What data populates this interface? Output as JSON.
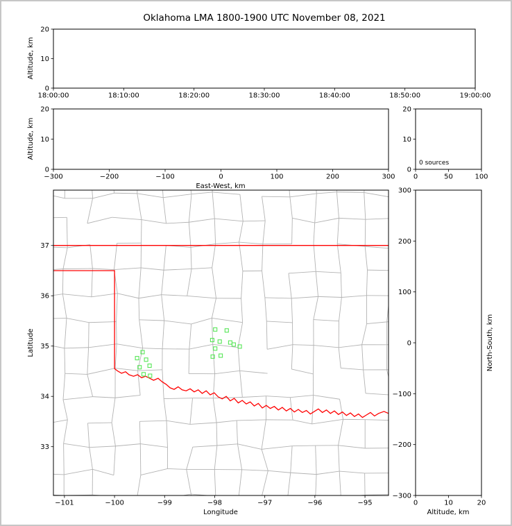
{
  "title": "Oklahoma LMA 1800-1900 UTC November 08, 2021",
  "colors": {
    "state_border": "#ff0000",
    "county_line": "#b3b3b3",
    "station": "#57e657",
    "axis": "#000000",
    "page_frame": "#c6c6c6"
  },
  "chart_data": [
    {
      "id": "time_height",
      "type": "scatter",
      "xlabel": "",
      "ylabel": "Altitude, km",
      "x_tick_labels": [
        "18:00:00",
        "18:10:00",
        "18:20:00",
        "18:30:00",
        "18:40:00",
        "18:50:00",
        "19:00:00"
      ],
      "ylim": [
        0,
        20
      ],
      "yticks": [
        0,
        10,
        20
      ],
      "points": []
    },
    {
      "id": "ew_height",
      "type": "scatter",
      "xlabel": "East-West, km",
      "ylabel": "Altitude, km",
      "xlim": [
        -300,
        300
      ],
      "xticks": [
        -300,
        -200,
        -100,
        0,
        100,
        200,
        300
      ],
      "ylim": [
        0,
        20
      ],
      "yticks": [
        0,
        10,
        20
      ],
      "points": []
    },
    {
      "id": "source_histogram",
      "type": "line",
      "annotation": "0 sources",
      "xlim": [
        0,
        100
      ],
      "xticks": [
        0,
        50,
        100
      ],
      "ylim": [
        0,
        20
      ],
      "yticks": [
        0,
        10,
        20
      ],
      "points": []
    },
    {
      "id": "plan_view",
      "type": "scatter",
      "xlabel": "Longitude",
      "ylabel": "Latitude",
      "xlim": [
        -101.22,
        -94.53
      ],
      "ylim": [
        32.03,
        38.1
      ],
      "xticks": [
        -101,
        -100,
        -99,
        -98,
        -97,
        -96,
        -95
      ],
      "yticks": [
        33,
        34,
        35,
        36,
        37
      ],
      "points": [],
      "stations_lon_lat": [
        [
          -99.44,
          34.88
        ],
        [
          -99.55,
          34.76
        ],
        [
          -99.37,
          34.73
        ],
        [
          -99.3,
          34.61
        ],
        [
          -99.5,
          34.58
        ],
        [
          -99.42,
          34.44
        ],
        [
          -99.29,
          34.41
        ],
        [
          -97.99,
          35.33
        ],
        [
          -97.76,
          35.31
        ],
        [
          -98.05,
          35.12
        ],
        [
          -97.9,
          35.09
        ],
        [
          -97.69,
          35.07
        ],
        [
          -97.62,
          35.03
        ],
        [
          -97.5,
          34.99
        ],
        [
          -97.99,
          34.95
        ],
        [
          -97.88,
          34.81
        ],
        [
          -98.04,
          34.79
        ]
      ],
      "state_border_lon_lat": [
        [
          [
            -101.22,
            37.0
          ],
          [
            -94.53,
            37.0
          ]
        ],
        [
          [
            -101.22,
            36.5
          ],
          [
            -100.0,
            36.5
          ],
          [
            -100.0,
            34.55
          ],
          [
            -99.93,
            34.5
          ],
          [
            -99.86,
            34.46
          ],
          [
            -99.78,
            34.49
          ],
          [
            -99.71,
            34.43
          ],
          [
            -99.62,
            34.4
          ],
          [
            -99.54,
            34.43
          ],
          [
            -99.46,
            34.37
          ],
          [
            -99.38,
            34.4
          ],
          [
            -99.3,
            34.36
          ],
          [
            -99.22,
            34.32
          ],
          [
            -99.13,
            34.36
          ],
          [
            -99.05,
            34.29
          ],
          [
            -98.97,
            34.24
          ],
          [
            -98.89,
            34.17
          ],
          [
            -98.81,
            34.14
          ],
          [
            -98.73,
            34.19
          ],
          [
            -98.65,
            34.13
          ],
          [
            -98.57,
            34.11
          ],
          [
            -98.49,
            34.15
          ],
          [
            -98.41,
            34.09
          ],
          [
            -98.33,
            34.13
          ],
          [
            -98.25,
            34.06
          ],
          [
            -98.17,
            34.11
          ],
          [
            -98.09,
            34.03
          ],
          [
            -98.01,
            34.07
          ],
          [
            -97.93,
            33.99
          ],
          [
            -97.85,
            33.95
          ],
          [
            -97.77,
            34.0
          ],
          [
            -97.69,
            33.91
          ],
          [
            -97.61,
            33.96
          ],
          [
            -97.53,
            33.87
          ],
          [
            -97.45,
            33.92
          ],
          [
            -97.37,
            33.85
          ],
          [
            -97.29,
            33.89
          ],
          [
            -97.21,
            33.81
          ],
          [
            -97.13,
            33.86
          ],
          [
            -97.05,
            33.77
          ],
          [
            -96.97,
            33.82
          ],
          [
            -96.89,
            33.76
          ],
          [
            -96.81,
            33.8
          ],
          [
            -96.73,
            33.73
          ],
          [
            -96.65,
            33.78
          ],
          [
            -96.57,
            33.71
          ],
          [
            -96.49,
            33.76
          ],
          [
            -96.41,
            33.69
          ],
          [
            -96.33,
            33.74
          ],
          [
            -96.25,
            33.68
          ],
          [
            -96.17,
            33.72
          ],
          [
            -96.09,
            33.65
          ],
          [
            -96.01,
            33.7
          ],
          [
            -95.93,
            33.75
          ],
          [
            -95.85,
            33.68
          ],
          [
            -95.77,
            33.73
          ],
          [
            -95.69,
            33.66
          ],
          [
            -95.61,
            33.71
          ],
          [
            -95.53,
            33.64
          ],
          [
            -95.45,
            33.69
          ],
          [
            -95.37,
            33.62
          ],
          [
            -95.29,
            33.67
          ],
          [
            -95.21,
            33.6
          ],
          [
            -95.13,
            33.65
          ],
          [
            -95.05,
            33.58
          ],
          [
            -94.97,
            33.63
          ],
          [
            -94.89,
            33.68
          ],
          [
            -94.81,
            33.61
          ],
          [
            -94.73,
            33.66
          ],
          [
            -94.62,
            33.7
          ],
          [
            -94.53,
            33.66
          ]
        ]
      ],
      "county_grid": {
        "lon_start": -102.0,
        "lat_start": 31.5,
        "step": 0.5,
        "cols": 16,
        "rows": 14,
        "jitter": 0.13,
        "skip_fraction": 0.15,
        "seed": 12345
      }
    },
    {
      "id": "ns_height",
      "type": "scatter",
      "xlabel": "Altitude, km",
      "ylabel": "North-South, km",
      "xlim": [
        0,
        20
      ],
      "xticks": [
        0,
        10,
        20
      ],
      "ylim": [
        -300,
        300
      ],
      "yticks": [
        -300,
        -200,
        -100,
        0,
        100,
        200,
        300
      ],
      "points": []
    }
  ]
}
